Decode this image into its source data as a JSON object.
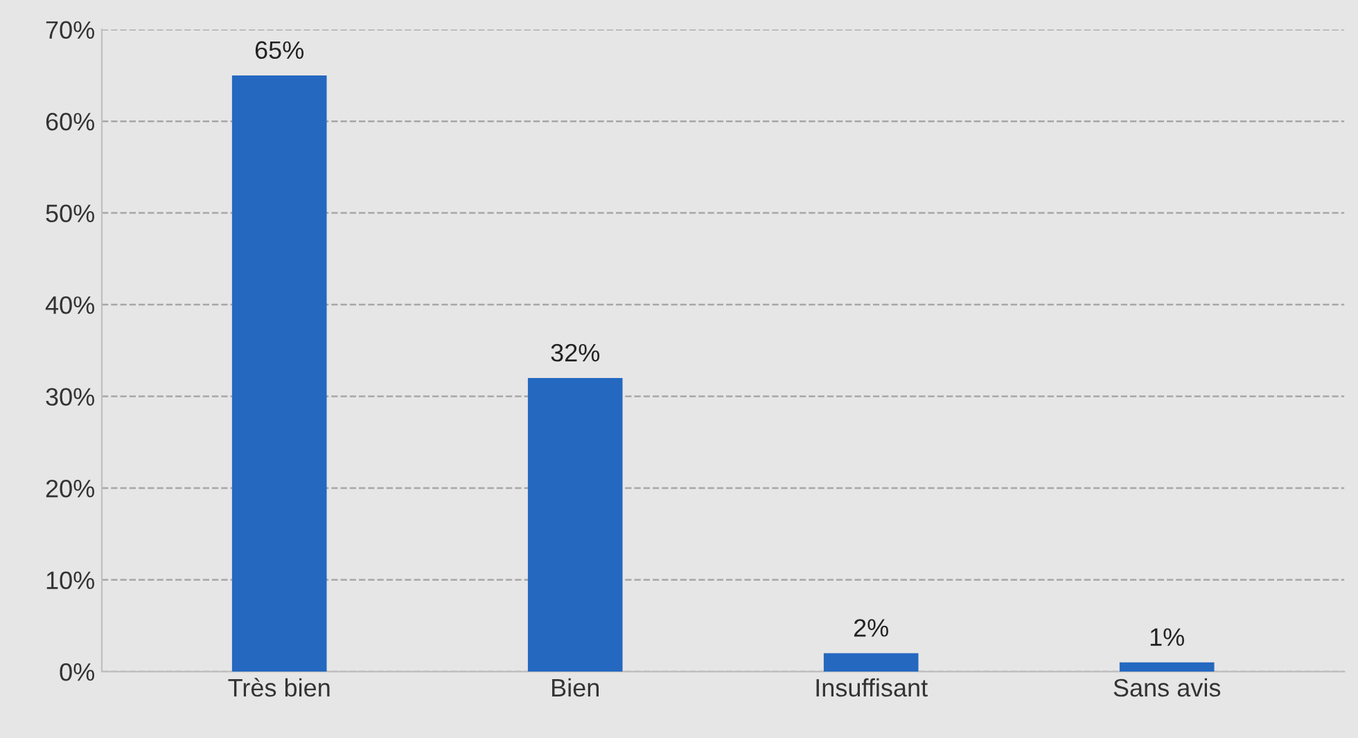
{
  "chart_data": {
    "type": "bar",
    "categories": [
      "Très bien",
      "Bien",
      "Insuffisant",
      "Sans avis"
    ],
    "values": [
      65,
      32,
      2,
      1
    ],
    "value_labels": [
      "65%",
      "32%",
      "2%",
      "1%"
    ],
    "color": "#2468c0",
    "ylim": [
      0,
      70
    ],
    "yticks": [
      {
        "value": 0,
        "label": "0%"
      },
      {
        "value": 10,
        "label": "10%"
      },
      {
        "value": 20,
        "label": "20%"
      },
      {
        "value": 30,
        "label": "30%"
      },
      {
        "value": 40,
        "label": "40%"
      },
      {
        "value": 50,
        "label": "50%"
      },
      {
        "value": 60,
        "label": "60%"
      },
      {
        "value": 70,
        "label": "70%"
      }
    ],
    "grid": "y"
  }
}
